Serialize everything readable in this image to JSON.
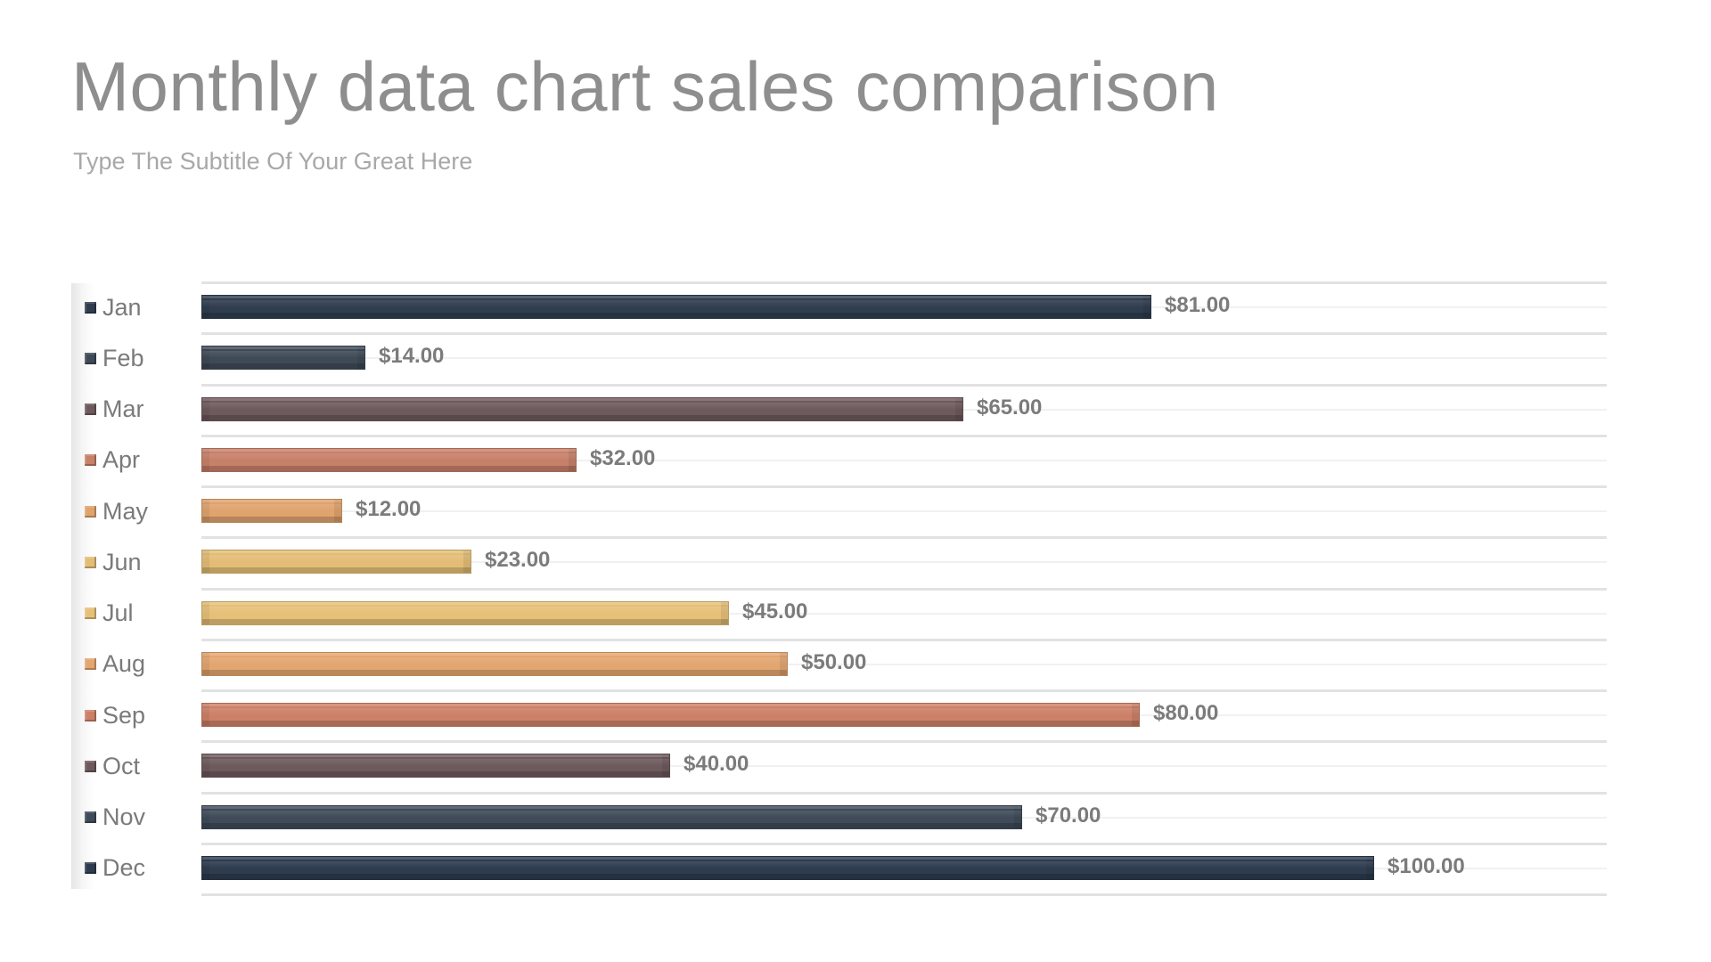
{
  "header": {
    "title": "Monthly data chart sales comparison",
    "subtitle": "Type The Subtitle Of Your Great Here"
  },
  "chart_data": {
    "type": "bar",
    "orientation": "horizontal",
    "title": "Monthly data chart sales comparison",
    "subtitle": "Type The Subtitle Of Your Great Here",
    "xlabel": "",
    "ylabel": "",
    "categories": [
      "Jan",
      "Feb",
      "Mar",
      "Apr",
      "May",
      "Jun",
      "Jul",
      "Aug",
      "Sep",
      "Oct",
      "Nov",
      "Dec"
    ],
    "values": [
      81,
      14,
      65,
      32,
      12,
      23,
      45,
      50,
      80,
      40,
      70,
      100
    ],
    "value_labels": [
      "$81.00",
      "$14.00",
      "$65.00",
      "$32.00",
      "$12.00",
      "$23.00",
      "$45.00",
      "$50.00",
      "$80.00",
      "$40.00",
      "$70.00",
      "$100.00"
    ],
    "colors": [
      "#2f3d4f",
      "#3f4a57",
      "#6e5a5c",
      "#c7806a",
      "#dfa36d",
      "#e3bd76",
      "#e6c078",
      "#e3a670",
      "#cd8068",
      "#6d5a5d",
      "#3f4b59",
      "#2e3c4f"
    ],
    "xlim": [
      0,
      100
    ],
    "grid": true,
    "legend_position": "left"
  },
  "rows": [
    {
      "label": "Jan",
      "value": 81,
      "display": "$81.00",
      "color": "#2f3d4f"
    },
    {
      "label": "Feb",
      "value": 14,
      "display": "$14.00",
      "color": "#3f4a57"
    },
    {
      "label": "Mar",
      "value": 65,
      "display": "$65.00",
      "color": "#6e5a5c"
    },
    {
      "label": "Apr",
      "value": 32,
      "display": "$32.00",
      "color": "#c7806a"
    },
    {
      "label": "May",
      "value": 12,
      "display": "$12.00",
      "color": "#dfa36d"
    },
    {
      "label": "Jun",
      "value": 23,
      "display": "$23.00",
      "color": "#e3bd76"
    },
    {
      "label": "Jul",
      "value": 45,
      "display": "$45.00",
      "color": "#e6c078"
    },
    {
      "label": "Aug",
      "value": 50,
      "display": "$50.00",
      "color": "#e3a670"
    },
    {
      "label": "Sep",
      "value": 80,
      "display": "$80.00",
      "color": "#cd8068"
    },
    {
      "label": "Oct",
      "value": 40,
      "display": "$40.00",
      "color": "#6d5a5d"
    },
    {
      "label": "Nov",
      "value": 70,
      "display": "$70.00",
      "color": "#3f4b59"
    },
    {
      "label": "Dec",
      "value": 100,
      "display": "$100.00",
      "color": "#2e3c4f"
    }
  ]
}
